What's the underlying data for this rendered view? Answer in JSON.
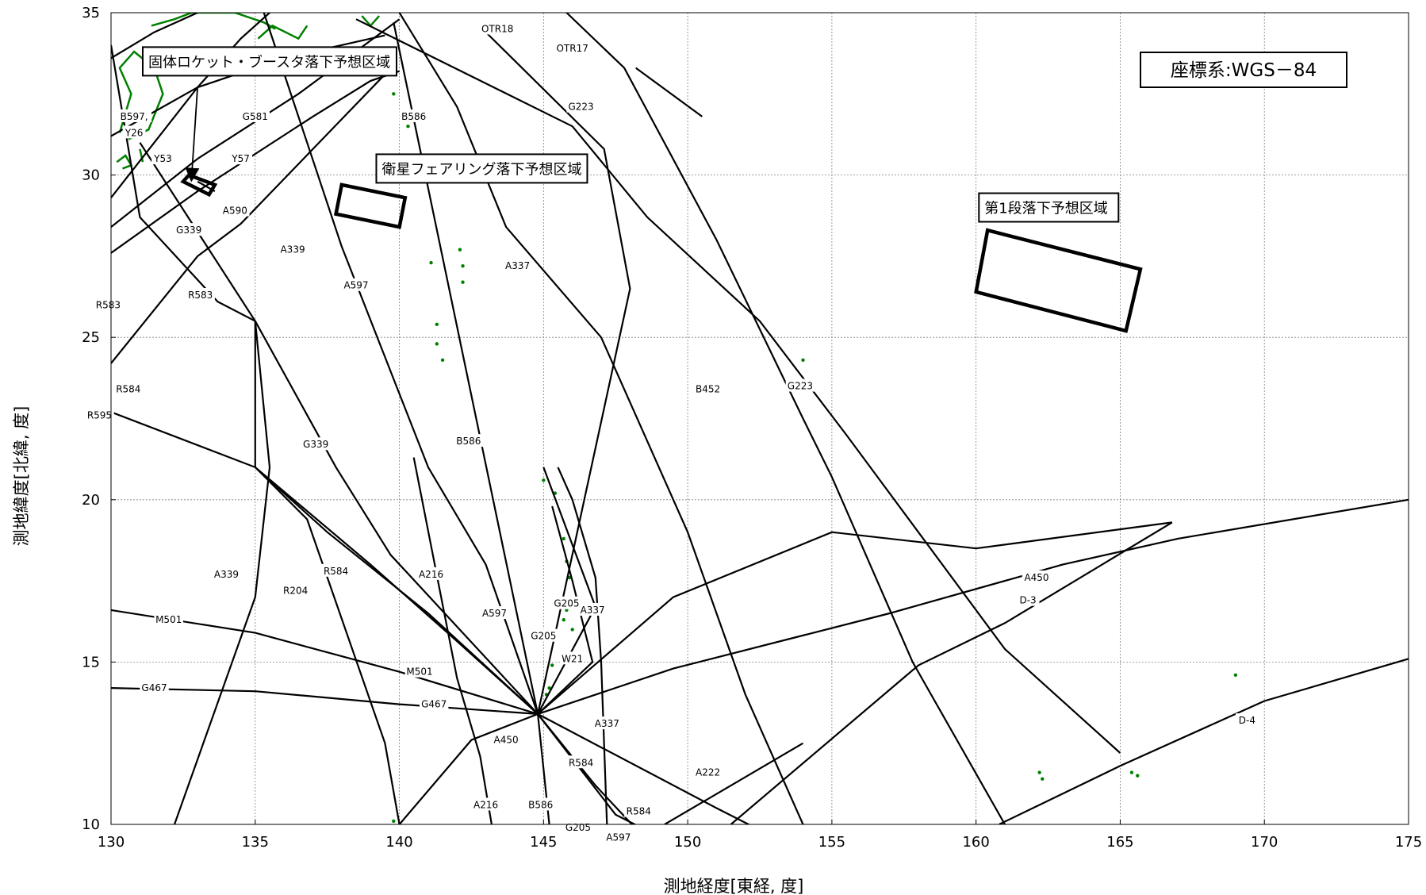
{
  "chart_data": {
    "type": "map",
    "xlim": [
      130,
      175
    ],
    "ylim": [
      10,
      35
    ],
    "x_ticks": [
      130,
      135,
      140,
      145,
      150,
      155,
      160,
      165,
      170,
      175
    ],
    "y_ticks": [
      10,
      15,
      20,
      25,
      30,
      35
    ],
    "grid": true,
    "xlabel": "測地経度[東経, 度]",
    "ylabel": "測地緯度[北緯, 度]",
    "coordinate_system": "座標系:WGS－84",
    "colors": {
      "routes": "#000000",
      "land": "#008000",
      "grid": "#808080"
    },
    "routes": [
      {
        "points": [
          [
            130,
            33.6
          ],
          [
            131.5,
            34.4
          ],
          [
            133,
            35
          ]
        ]
      },
      {
        "points": [
          [
            130,
            31.2
          ],
          [
            133,
            32.7
          ],
          [
            135,
            33.3
          ],
          [
            137,
            33.8
          ],
          [
            139.5,
            34.3
          ]
        ]
      },
      {
        "points": [
          [
            130,
            29.3
          ],
          [
            133,
            32.7
          ],
          [
            134.5,
            34.2
          ],
          [
            135.5,
            35
          ]
        ]
      },
      {
        "points": [
          [
            130,
            28.4
          ],
          [
            133,
            30.5
          ],
          [
            136.5,
            32.5
          ],
          [
            140,
            34.8
          ]
        ]
      },
      {
        "points": [
          [
            130,
            27.6
          ],
          [
            133,
            29.5
          ],
          [
            137,
            31.8
          ],
          [
            139,
            32.9
          ],
          [
            140,
            33.2
          ]
        ]
      },
      {
        "points": [
          [
            130,
            24.2
          ],
          [
            133,
            27.5
          ],
          [
            134.5,
            28.5
          ],
          [
            139.5,
            33.1
          ]
        ]
      },
      {
        "points": [
          [
            133,
            29.8
          ],
          [
            133.6,
            29.5
          ]
        ]
      },
      {
        "points": [
          [
            131,
            31
          ],
          [
            135,
            25.5
          ],
          [
            137.8,
            21
          ],
          [
            139.7,
            18.3
          ],
          [
            144.8,
            13.4
          ]
        ]
      },
      {
        "points": [
          [
            135.3,
            35
          ],
          [
            138,
            27.8
          ],
          [
            141,
            21
          ],
          [
            143,
            18
          ],
          [
            144.8,
            13.4
          ]
        ]
      },
      {
        "points": [
          [
            139.8,
            34.7
          ],
          [
            144.8,
            13.4
          ]
        ]
      },
      {
        "points": [
          [
            143,
            34.4
          ],
          [
            147.1,
            30.8
          ],
          [
            148,
            26.5
          ],
          [
            144.8,
            13.4
          ]
        ]
      },
      {
        "points": [
          [
            140,
            35
          ],
          [
            142,
            32.1
          ],
          [
            143.7,
            28.4
          ],
          [
            147,
            25
          ],
          [
            150,
            19
          ],
          [
            152,
            14
          ],
          [
            154,
            10
          ]
        ]
      },
      {
        "points": [
          [
            145.8,
            35
          ],
          [
            147.8,
            33.3
          ],
          [
            151,
            28
          ],
          [
            154,
            22.5
          ],
          [
            155,
            20.7
          ],
          [
            157.8,
            15
          ],
          [
            161,
            10
          ]
        ]
      },
      {
        "points": [
          [
            138.5,
            34.8
          ],
          [
            146,
            31.5
          ],
          [
            148.6,
            28.7
          ],
          [
            152.5,
            25.5
          ],
          [
            155.5,
            22
          ],
          [
            161,
            15.4
          ],
          [
            165,
            12.2
          ]
        ]
      },
      {
        "points": [
          [
            148.2,
            33.3
          ],
          [
            150.5,
            31.8
          ]
        ]
      },
      {
        "points": [
          [
            145,
            21
          ],
          [
            146.8,
            16.7
          ],
          [
            144.8,
            13.4
          ]
        ]
      },
      {
        "points": [
          [
            145.3,
            19.8
          ],
          [
            146,
            17.5
          ],
          [
            146.7,
            15
          ],
          [
            144.8,
            13.4
          ]
        ]
      },
      {
        "points": [
          [
            145.5,
            21
          ],
          [
            146,
            20
          ],
          [
            146.8,
            17.6
          ],
          [
            147,
            15
          ],
          [
            147.2,
            10
          ]
        ]
      },
      {
        "points": [
          [
            130,
            34
          ],
          [
            131,
            28.7
          ],
          [
            133.7,
            26.1
          ],
          [
            135,
            25.5
          ],
          [
            135.5,
            21
          ],
          [
            135,
            17
          ],
          [
            132.2,
            10
          ]
        ]
      },
      {
        "points": [
          [
            135,
            25.5
          ],
          [
            135,
            21
          ],
          [
            137.5,
            19
          ],
          [
            141,
            16.5
          ],
          [
            144.8,
            13.4
          ]
        ]
      },
      {
        "points": [
          [
            130,
            22.7
          ],
          [
            135,
            21
          ],
          [
            139,
            18
          ],
          [
            141.8,
            15.8
          ],
          [
            144.8,
            13.4
          ]
        ]
      },
      {
        "points": [
          [
            135,
            21
          ],
          [
            136.8,
            19.4
          ],
          [
            139.5,
            12.5
          ],
          [
            140,
            10
          ]
        ]
      },
      {
        "points": [
          [
            140.5,
            21.3
          ],
          [
            142,
            14.5
          ],
          [
            142.8,
            12.1
          ],
          [
            143.2,
            10
          ]
        ]
      },
      {
        "points": [
          [
            130,
            16.6
          ],
          [
            135,
            15.9
          ],
          [
            140,
            14.7
          ],
          [
            144.8,
            13.4
          ]
        ]
      },
      {
        "points": [
          [
            130,
            14.2
          ],
          [
            135,
            14.1
          ],
          [
            140,
            13.7
          ],
          [
            144.8,
            13.4
          ]
        ]
      },
      {
        "points": [
          [
            140,
            10
          ],
          [
            142.5,
            12.6
          ],
          [
            144.8,
            13.4
          ],
          [
            149.5,
            17
          ],
          [
            155,
            19
          ],
          [
            160,
            18.5
          ],
          [
            166.8,
            19.3
          ]
        ]
      },
      {
        "points": [
          [
            144.8,
            13.4
          ],
          [
            149.5,
            14.8
          ],
          [
            157,
            16.5
          ],
          [
            163,
            18
          ],
          [
            167,
            18.8
          ],
          [
            175,
            20
          ]
        ]
      },
      {
        "points": [
          [
            144.8,
            13.4
          ],
          [
            151,
            10.5
          ],
          [
            153,
            9.6
          ]
        ]
      },
      {
        "points": [
          [
            144.8,
            13.4
          ],
          [
            146.8,
            11.2
          ],
          [
            148.8,
            9.3
          ]
        ]
      },
      {
        "points": [
          [
            144.8,
            13.4
          ],
          [
            147.5,
            10.3
          ],
          [
            149.5,
            9.4
          ]
        ]
      },
      {
        "points": [
          [
            144.8,
            13.4
          ],
          [
            145.2,
            10
          ]
        ]
      },
      {
        "points": [
          [
            151.5,
            10
          ],
          [
            158,
            14.9
          ],
          [
            161,
            16.2
          ],
          [
            166.8,
            19.3
          ]
        ]
      },
      {
        "points": [
          [
            160.8,
            10
          ],
          [
            165,
            11.8
          ],
          [
            170,
            13.8
          ],
          [
            175,
            15.1
          ]
        ]
      },
      {
        "points": [
          [
            149.2,
            10
          ],
          [
            154,
            12.5
          ]
        ]
      }
    ],
    "route_labels": [
      {
        "text": "OTR18",
        "lon": 143.4,
        "lat": 34.5
      },
      {
        "text": "OTR17",
        "lon": 146,
        "lat": 33.9
      },
      {
        "text": "G223",
        "lon": 146.3,
        "lat": 32.1
      },
      {
        "text": "B586",
        "lon": 140.5,
        "lat": 31.8
      },
      {
        "text": "B597,",
        "lon": 130.8,
        "lat": 31.8
      },
      {
        "text": "Y26",
        "lon": 130.8,
        "lat": 31.3
      },
      {
        "text": "G581",
        "lon": 135,
        "lat": 31.8
      },
      {
        "text": "Y53",
        "lon": 131.8,
        "lat": 30.5
      },
      {
        "text": "Y57",
        "lon": 134.5,
        "lat": 30.5
      },
      {
        "text": "A590",
        "lon": 134.3,
        "lat": 28.9
      },
      {
        "text": "G339",
        "lon": 132.7,
        "lat": 28.3
      },
      {
        "text": "A339",
        "lon": 136.3,
        "lat": 27.7
      },
      {
        "text": "A597",
        "lon": 138.5,
        "lat": 26.6
      },
      {
        "text": "A337",
        "lon": 144.1,
        "lat": 27.2
      },
      {
        "text": "R583",
        "lon": 129.9,
        "lat": 26
      },
      {
        "text": "R583",
        "lon": 133.1,
        "lat": 26.3
      },
      {
        "text": "R584",
        "lon": 130.6,
        "lat": 23.4
      },
      {
        "text": "R595",
        "lon": 129.6,
        "lat": 22.6
      },
      {
        "text": "B452",
        "lon": 150.7,
        "lat": 23.4
      },
      {
        "text": "G223",
        "lon": 153.9,
        "lat": 23.5
      },
      {
        "text": "B586",
        "lon": 142.4,
        "lat": 21.8
      },
      {
        "text": "G339",
        "lon": 137.1,
        "lat": 21.7
      },
      {
        "text": "A339",
        "lon": 134,
        "lat": 17.7
      },
      {
        "text": "R584",
        "lon": 137.8,
        "lat": 17.8
      },
      {
        "text": "A216",
        "lon": 141.1,
        "lat": 17.7
      },
      {
        "text": "R204",
        "lon": 136.4,
        "lat": 17.2
      },
      {
        "text": "A337",
        "lon": 146.7,
        "lat": 16.6
      },
      {
        "text": "G205",
        "lon": 145.8,
        "lat": 16.8
      },
      {
        "text": "A597",
        "lon": 143.3,
        "lat": 16.5
      },
      {
        "text": "M501",
        "lon": 132,
        "lat": 16.3
      },
      {
        "text": "G205",
        "lon": 145,
        "lat": 15.8
      },
      {
        "text": "W21",
        "lon": 146,
        "lat": 15.1
      },
      {
        "text": "M501",
        "lon": 140.7,
        "lat": 14.7
      },
      {
        "text": "G467",
        "lon": 131.5,
        "lat": 14.2
      },
      {
        "text": "G467",
        "lon": 141.2,
        "lat": 13.7
      },
      {
        "text": "A337",
        "lon": 147.2,
        "lat": 13.1
      },
      {
        "text": "A450",
        "lon": 143.7,
        "lat": 12.6
      },
      {
        "text": "R584",
        "lon": 146.3,
        "lat": 11.9
      },
      {
        "text": "A222",
        "lon": 150.7,
        "lat": 11.6
      },
      {
        "text": "A216",
        "lon": 143,
        "lat": 10.6
      },
      {
        "text": "B586",
        "lon": 144.9,
        "lat": 10.6
      },
      {
        "text": "R584",
        "lon": 148.3,
        "lat": 10.4
      },
      {
        "text": "G205",
        "lon": 146.2,
        "lat": 9.9
      },
      {
        "text": "A597",
        "lon": 147.6,
        "lat": 9.6
      },
      {
        "text": "A450",
        "lon": 162.1,
        "lat": 17.6
      },
      {
        "text": "D-3",
        "lon": 161.8,
        "lat": 16.9
      },
      {
        "text": "D-4",
        "lon": 169.4,
        "lat": 13.2
      }
    ],
    "drop_zones": [
      {
        "label": "固体ロケット・ブースタ落下予想区域",
        "polygon": [
          [
            132.5,
            29.8
          ],
          [
            132.7,
            30
          ],
          [
            133.6,
            29.7
          ],
          [
            133.4,
            29.4
          ]
        ],
        "label_at": [
          131.1,
          33.5
        ],
        "arrow": {
          "from": [
            133,
            32.7
          ],
          "to": [
            132.8,
            30
          ]
        }
      },
      {
        "label": "衛星フェアリング落下予想区域",
        "polygon": [
          [
            137.8,
            28.8
          ],
          [
            138,
            29.7
          ],
          [
            140.2,
            29.3
          ],
          [
            140,
            28.4
          ]
        ],
        "label_at": [
          139.2,
          30.2
        ]
      },
      {
        "label": "第1段落下予想区域",
        "polygon": [
          [
            160,
            26.4
          ],
          [
            160.4,
            28.3
          ],
          [
            165.7,
            27.1
          ],
          [
            165.2,
            25.2
          ]
        ],
        "label_at": [
          160.1,
          29
        ]
      }
    ],
    "land": [
      {
        "points": [
          [
            131.4,
            34.6
          ],
          [
            132.2,
            34.8
          ],
          [
            132.8,
            35
          ],
          [
            134.3,
            35
          ],
          [
            135.3,
            34.7
          ],
          [
            135.7,
            34.5
          ]
        ]
      },
      {
        "points": [
          [
            130.3,
            31.3
          ],
          [
            130.7,
            32.5
          ],
          [
            130.3,
            33.3
          ],
          [
            130.8,
            33.8
          ],
          [
            131.5,
            33.3
          ],
          [
            131.8,
            32.5
          ],
          [
            131.3,
            31.4
          ],
          [
            130.6,
            31.1
          ]
        ]
      },
      {
        "points": [
          [
            130.2,
            30.4
          ],
          [
            130.5,
            30.6
          ],
          [
            130.7,
            30.3
          ],
          [
            130.4,
            30.2
          ]
        ]
      },
      {
        "points": [
          [
            131,
            30.8
          ],
          [
            131.1,
            30.4
          ]
        ]
      },
      {
        "points": [
          [
            135.1,
            34.2
          ],
          [
            135.6,
            34.6
          ],
          [
            136.5,
            34.2
          ],
          [
            136.8,
            34.6
          ]
        ]
      },
      {
        "points": [
          [
            138.7,
            34.9
          ],
          [
            139,
            34.6
          ],
          [
            139.3,
            34.9
          ]
        ]
      },
      {
        "points": [
          [
            132.7,
            33.5
          ],
          [
            133.2,
            33.9
          ],
          [
            134,
            33.4
          ],
          [
            134.7,
            33.9
          ]
        ]
      }
    ],
    "islands": [
      [
        139.8,
        33.1
      ],
      [
        139.8,
        32.5
      ],
      [
        140.3,
        31.5
      ],
      [
        141.1,
        27.3
      ],
      [
        142.1,
        27.7
      ],
      [
        142.2,
        27.2
      ],
      [
        142.2,
        26.7
      ],
      [
        141.3,
        25.4
      ],
      [
        141.3,
        24.8
      ],
      [
        141.5,
        24.3
      ],
      [
        154,
        24.3
      ],
      [
        145,
        20.6
      ],
      [
        145.4,
        20.2
      ],
      [
        145.7,
        18.8
      ],
      [
        145.8,
        18.1
      ],
      [
        145.9,
        17.6
      ],
      [
        145.8,
        16.6
      ],
      [
        145.7,
        16.3
      ],
      [
        146,
        16
      ],
      [
        145.3,
        14.9
      ],
      [
        145.2,
        14.2
      ],
      [
        145.1,
        14
      ],
      [
        144.8,
        13.5
      ],
      [
        162.2,
        11.6
      ],
      [
        162.3,
        11.4
      ],
      [
        165.4,
        11.6
      ],
      [
        165.6,
        11.5
      ],
      [
        169,
        14.6
      ],
      [
        139.8,
        10.1
      ]
    ]
  }
}
